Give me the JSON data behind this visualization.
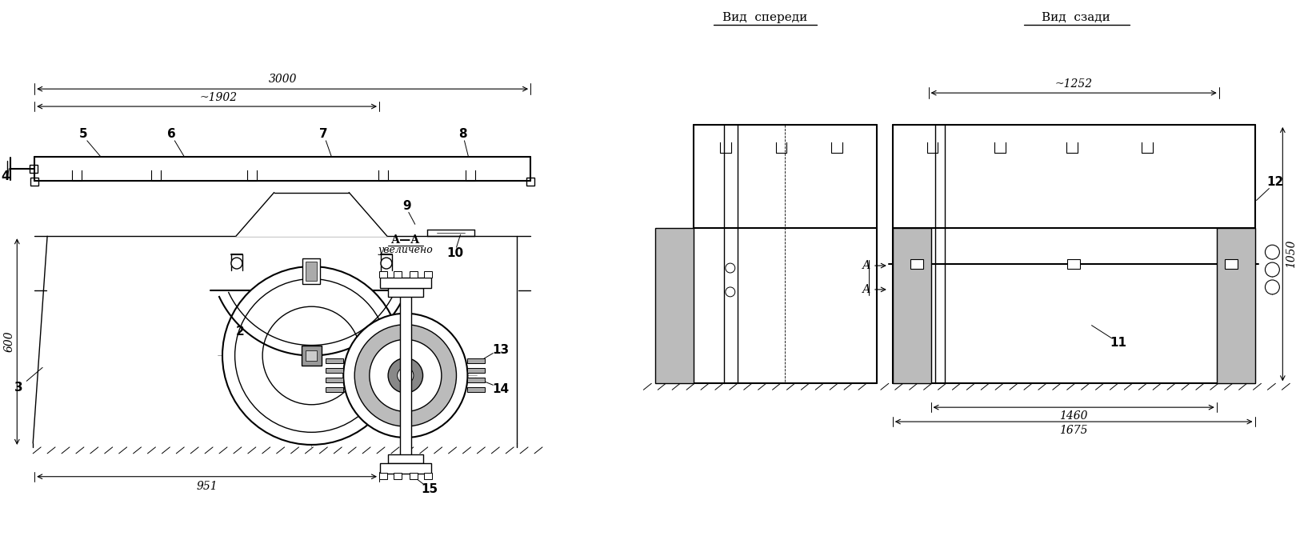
{
  "bg_color": "#ffffff",
  "line_color": "#000000",
  "fig_width": 16.2,
  "fig_height": 6.85,
  "labels": {
    "vid_spereди": "Вид  спереди",
    "vid_szadi": "Вид  сзади",
    "dim_3000": "3000",
    "dim_1902": "~1902",
    "dim_600": "600",
    "dim_951": "951",
    "dim_1252": "~1252",
    "dim_1050": "1050",
    "dim_1460": "1460",
    "dim_1675": "1675",
    "AA": "А—А",
    "uvelicheno": "увеличено"
  }
}
